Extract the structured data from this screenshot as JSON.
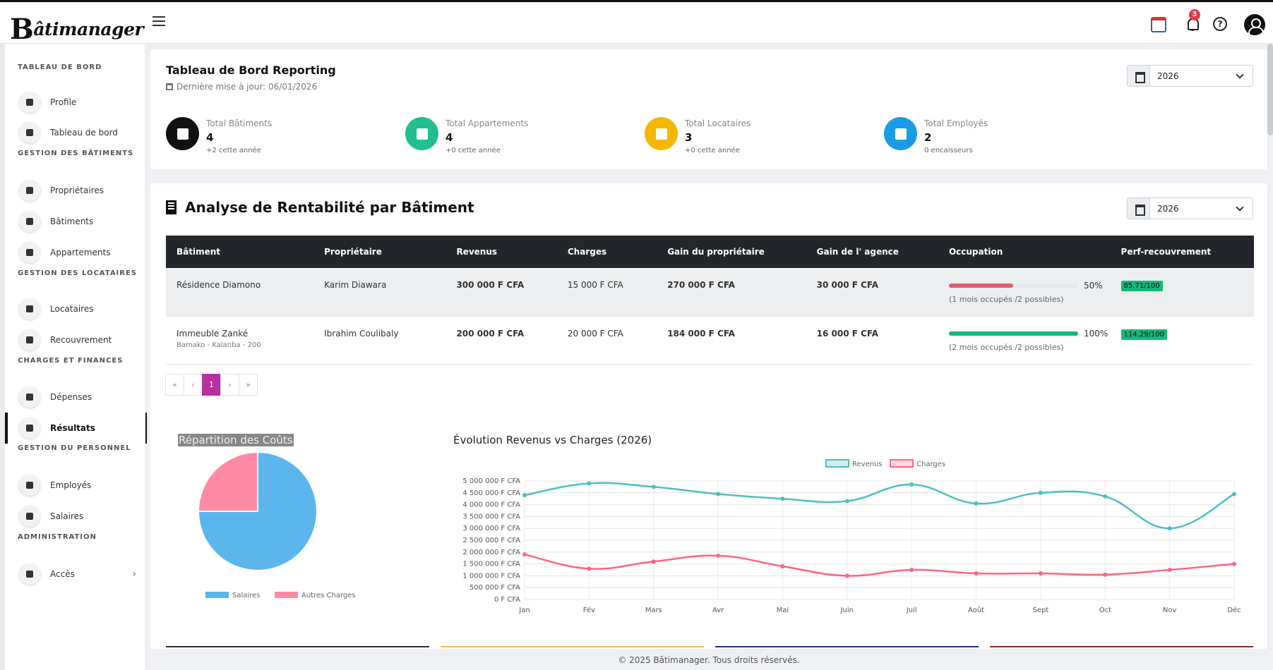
{
  "app": {
    "logo_initial": "B",
    "logo_rest": "âtimanager"
  },
  "topbar": {
    "notification_count": "3",
    "help_symbol": "?"
  },
  "sidebar": {
    "sections": [
      {
        "title": "TABLEAU DE BORD",
        "items": [
          {
            "label": "Profile",
            "icon": "user-icon"
          },
          {
            "label": "Tableau de bord",
            "icon": "dashboard-icon"
          }
        ]
      },
      {
        "title": "GESTION DES BÂTIMENTS",
        "items": [
          {
            "label": "Propriétaires",
            "icon": "owner-icon"
          },
          {
            "label": "Bâtiments",
            "icon": "building-icon"
          },
          {
            "label": "Appartements",
            "icon": "bed-icon"
          }
        ]
      },
      {
        "title": "GESTION DES LOCATAIRES",
        "items": [
          {
            "label": "Locataires",
            "icon": "person-icon"
          },
          {
            "label": "Recouvrement",
            "icon": "hand-coin-icon"
          }
        ]
      },
      {
        "title": "CHARGES ET FINANCES",
        "items": [
          {
            "label": "Dépenses",
            "icon": "invoice-icon"
          },
          {
            "label": "Résultats",
            "icon": "results-icon",
            "active": true
          }
        ]
      },
      {
        "title": "GESTION DU PERSONNEL",
        "items": [
          {
            "label": "Employés",
            "icon": "users-icon"
          },
          {
            "label": "Salaires",
            "icon": "money-icon"
          }
        ]
      },
      {
        "title": "ADMINISTRATION",
        "items": [
          {
            "label": "Accès",
            "icon": "lock-icon",
            "chevron": "›"
          }
        ]
      }
    ]
  },
  "reporting": {
    "title": "Tableau de Bord Reporting",
    "last_update": "Dernière mise à jour: 06/01/2026",
    "year": "2026",
    "stats": [
      {
        "label": "Total Bâtiments",
        "value": "4",
        "note": "+2 cette année",
        "color": "#111111",
        "icon": "building-icon"
      },
      {
        "label": "Total Appartements",
        "value": "4",
        "note": "+0 cette année",
        "color": "#1fbf8f",
        "icon": "home-icon"
      },
      {
        "label": "Total Locataires",
        "value": "3",
        "note": "+0 cette année",
        "color": "#f5b800",
        "icon": "users-icon"
      },
      {
        "label": "Total Employés",
        "value": "2",
        "note": "0 encaisseurs",
        "color": "#1a9be6",
        "icon": "employee-icon"
      }
    ]
  },
  "analysis": {
    "title": "Analyse de Rentabilité par Bâtiment",
    "year": "2026",
    "columns": [
      "Bâtiment",
      "Propriétaire",
      "Revenus",
      "Charges",
      "Gain du propriétaire",
      "Gain de l' agence",
      "Occupation",
      "Perf-recouvrement"
    ],
    "rows": [
      {
        "building": "Résidence Diamono",
        "address": "",
        "owner": "Karim Diawara",
        "revenue": "300 000 F CFA",
        "charges": "15 000 F CFA",
        "owner_gain": "270 000 F CFA",
        "agency_gain": "30 000 F CFA",
        "occupancy_pct": 50,
        "occupancy_label": "50%",
        "occupancy_note": "(1 mois occupés /2 possibles)",
        "occupancy_color": "#e05d6f",
        "perf": "85.71/100"
      },
      {
        "building": "Immeuble Zanké",
        "address": "Bamako - Kalanba - 200",
        "owner": "Ibrahim Coulibaly",
        "revenue": "200 000 F CFA",
        "charges": "20 000 F CFA",
        "owner_gain": "184 000 F CFA",
        "agency_gain": "16 000 F CFA",
        "occupancy_pct": 100,
        "occupancy_label": "100%",
        "occupancy_note": "(2 mois occupés /2 possibles)",
        "occupancy_color": "#14b87a",
        "perf": "114.29/100"
      }
    ],
    "pagination": [
      "«",
      "‹",
      "1",
      "›",
      "»"
    ],
    "current_page": "1"
  },
  "pie_chart_title": "Répartition des Coûts",
  "line_chart_title": "Évolution Revenus vs Charges (2026)",
  "chart_data": [
    {
      "type": "pie",
      "title": "Répartition des Coûts",
      "categories": [
        "Salaires",
        "Autres Charges"
      ],
      "values": [
        75,
        25
      ],
      "colors": [
        "#5db5ee",
        "#ff8aa3"
      ],
      "legend": "bottom"
    },
    {
      "type": "line",
      "title": "Évolution Revenus vs Charges (2026)",
      "categories": [
        "Jan",
        "Fév",
        "Mars",
        "Avr",
        "Mai",
        "Juin",
        "Juil",
        "Août",
        "Sept",
        "Oct",
        "Nov",
        "Déc"
      ],
      "series": [
        {
          "name": "Revenus",
          "color": "#4bc0c0",
          "values": [
            4400000,
            4900000,
            4750000,
            4450000,
            4250000,
            4150000,
            4850000,
            4050000,
            4500000,
            4350000,
            3000000,
            4450000
          ]
        },
        {
          "name": "Charges",
          "color": "#ff6384",
          "values": [
            1900000,
            1300000,
            1600000,
            1850000,
            1400000,
            1000000,
            1250000,
            1100000,
            1100000,
            1050000,
            1250000,
            1500000
          ]
        }
      ],
      "ylim": [
        0,
        5000000
      ],
      "y_ticks": [
        "0 F CFA",
        "500 000 F CFA",
        "1 000 000 F CFA",
        "1 500 000 F CFA",
        "2 000 000 F CFA",
        "2 500 000 F CFA",
        "3 000 000 F CFA",
        "3 500 000 F CFA",
        "4 000 000 F CFA",
        "4 500 000 F CFA",
        "5 000 000 F CFA"
      ],
      "grid": true,
      "legend": "top"
    }
  ],
  "bottom_bar_colors": [
    "#2a2a3a",
    "#f0c040",
    "#2a2a8a",
    "#8a2a2a"
  ],
  "footer": {
    "text": "© 2025 Bâtimanager. Tous droits réservés."
  }
}
